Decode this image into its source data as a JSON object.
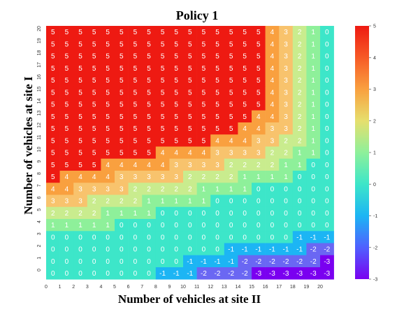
{
  "chart_data": {
    "type": "heatmap",
    "title": "Policy 1",
    "xlabel": "Number of vehicles at site II",
    "ylabel": "Number  of vehicles at site I",
    "x": [
      0,
      1,
      2,
      3,
      4,
      5,
      6,
      7,
      8,
      9,
      10,
      11,
      12,
      13,
      14,
      15,
      16,
      17,
      18,
      19,
      20
    ],
    "y": [
      20,
      19,
      18,
      17,
      16,
      15,
      14,
      13,
      12,
      11,
      10,
      9,
      8,
      7,
      6,
      5,
      4,
      3,
      2,
      1,
      0
    ],
    "values": [
      [
        5,
        5,
        5,
        5,
        5,
        5,
        5,
        5,
        5,
        5,
        5,
        5,
        5,
        5,
        5,
        5,
        4,
        3,
        2,
        1,
        0
      ],
      [
        5,
        5,
        5,
        5,
        5,
        5,
        5,
        5,
        5,
        5,
        5,
        5,
        5,
        5,
        5,
        5,
        4,
        3,
        2,
        1,
        0
      ],
      [
        5,
        5,
        5,
        5,
        5,
        5,
        5,
        5,
        5,
        5,
        5,
        5,
        5,
        5,
        5,
        5,
        4,
        3,
        2,
        1,
        0
      ],
      [
        5,
        5,
        5,
        5,
        5,
        5,
        5,
        5,
        5,
        5,
        5,
        5,
        5,
        5,
        5,
        5,
        4,
        3,
        2,
        1,
        0
      ],
      [
        5,
        5,
        5,
        5,
        5,
        5,
        5,
        5,
        5,
        5,
        5,
        5,
        5,
        5,
        5,
        5,
        4,
        3,
        2,
        1,
        0
      ],
      [
        5,
        5,
        5,
        5,
        5,
        5,
        5,
        5,
        5,
        5,
        5,
        5,
        5,
        5,
        5,
        5,
        4,
        3,
        2,
        1,
        0
      ],
      [
        5,
        5,
        5,
        5,
        5,
        5,
        5,
        5,
        5,
        5,
        5,
        5,
        5,
        5,
        5,
        5,
        4,
        3,
        2,
        1,
        0
      ],
      [
        5,
        5,
        5,
        5,
        5,
        5,
        5,
        5,
        5,
        5,
        5,
        5,
        5,
        5,
        5,
        4,
        4,
        3,
        2,
        1,
        0
      ],
      [
        5,
        5,
        5,
        5,
        5,
        5,
        5,
        5,
        5,
        5,
        5,
        5,
        5,
        5,
        4,
        4,
        3,
        3,
        2,
        1,
        0
      ],
      [
        5,
        5,
        5,
        5,
        5,
        5,
        5,
        5,
        5,
        5,
        5,
        5,
        4,
        4,
        4,
        3,
        3,
        2,
        2,
        1,
        0
      ],
      [
        5,
        5,
        5,
        5,
        5,
        5,
        5,
        5,
        4,
        4,
        4,
        4,
        3,
        3,
        3,
        3,
        2,
        2,
        1,
        1,
        0
      ],
      [
        5,
        5,
        5,
        5,
        4,
        4,
        4,
        4,
        4,
        3,
        3,
        3,
        3,
        2,
        2,
        2,
        2,
        1,
        1,
        0,
        0
      ],
      [
        5,
        4,
        4,
        4,
        4,
        3,
        3,
        3,
        3,
        3,
        2,
        2,
        2,
        2,
        1,
        1,
        1,
        1,
        0,
        0,
        0
      ],
      [
        4,
        4,
        3,
        3,
        3,
        3,
        2,
        2,
        2,
        2,
        2,
        1,
        1,
        1,
        1,
        0,
        0,
        0,
        0,
        0,
        0
      ],
      [
        3,
        3,
        3,
        2,
        2,
        2,
        2,
        1,
        1,
        1,
        1,
        1,
        0,
        0,
        0,
        0,
        0,
        0,
        0,
        0,
        0
      ],
      [
        2,
        2,
        2,
        2,
        1,
        1,
        1,
        1,
        0,
        0,
        0,
        0,
        0,
        0,
        0,
        0,
        0,
        0,
        0,
        0,
        0
      ],
      [
        1,
        1,
        1,
        1,
        1,
        0,
        0,
        0,
        0,
        0,
        0,
        0,
        0,
        0,
        0,
        0,
        0,
        0,
        0,
        0,
        0
      ],
      [
        0,
        0,
        0,
        0,
        0,
        0,
        0,
        0,
        0,
        0,
        0,
        0,
        0,
        0,
        0,
        0,
        0,
        0,
        -1,
        -1,
        -1
      ],
      [
        0,
        0,
        0,
        0,
        0,
        0,
        0,
        0,
        0,
        0,
        0,
        0,
        0,
        -1,
        -1,
        -1,
        -1,
        -1,
        -1,
        -2,
        -2
      ],
      [
        0,
        0,
        0,
        0,
        0,
        0,
        0,
        0,
        0,
        0,
        -1,
        -1,
        -1,
        -1,
        -2,
        -2,
        -2,
        -2,
        -2,
        -2,
        -3
      ],
      [
        0,
        0,
        0,
        0,
        0,
        0,
        0,
        0,
        -1,
        -1,
        -1,
        -2,
        -2,
        -2,
        -2,
        -3,
        -3,
        -3,
        -3,
        -3,
        -3
      ]
    ],
    "colorbar": {
      "ticks": [
        5,
        4,
        3,
        2,
        1,
        0,
        -1,
        -2,
        -3
      ],
      "range": [
        -3,
        5
      ],
      "placement": "right"
    },
    "grid": false,
    "legend": "colorbar-right"
  }
}
